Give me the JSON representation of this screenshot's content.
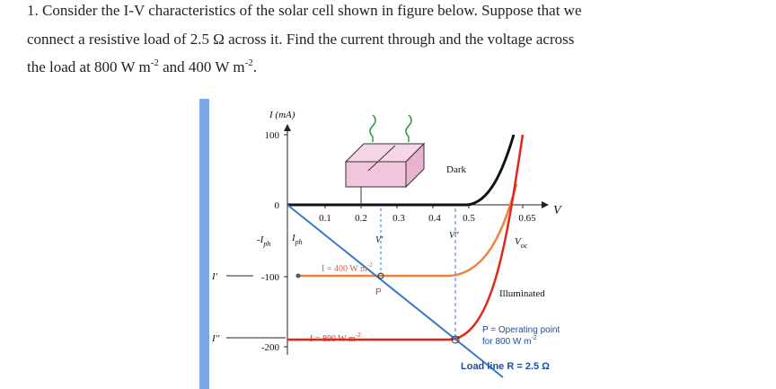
{
  "problem": {
    "line1": "1. Consider the I-V characteristics of the solar cell shown in figure below. Suppose that we",
    "line2": "connect a resistive load of 2.5 Ω across it. Find the current through and the voltage across",
    "line3": [
      "the load at 800 W m",
      "-2",
      " and 400 W m",
      "-2",
      "."
    ]
  },
  "figure": {
    "y_axis_label": "I (mA)",
    "y_ticks": [
      "100",
      "0",
      "-100",
      "-200"
    ],
    "x_ticks": [
      "0.1",
      "0.2",
      "0.3",
      "0.4",
      "0.5",
      "0.65"
    ],
    "x_axis_label": "V",
    "dark": "Dark",
    "illuminated": "Illuminated",
    "iph_left": [
      "-I",
      "ph"
    ],
    "iph_right": [
      "I",
      "ph"
    ],
    "i_prime": "I'",
    "i_double_prime": "I''",
    "v_prime": "V'",
    "v_double_prime": "V''",
    "voc": [
      "V",
      "oc"
    ],
    "curve_400": [
      "I = 400 W m",
      "-2"
    ],
    "curve_800": [
      "I = 800 W m",
      "-2"
    ],
    "p": "P",
    "operating_point": [
      "P = Operating point",
      "for 800 W m",
      "-2"
    ],
    "load_line": "Load line R = 2.5 Ω"
  }
}
